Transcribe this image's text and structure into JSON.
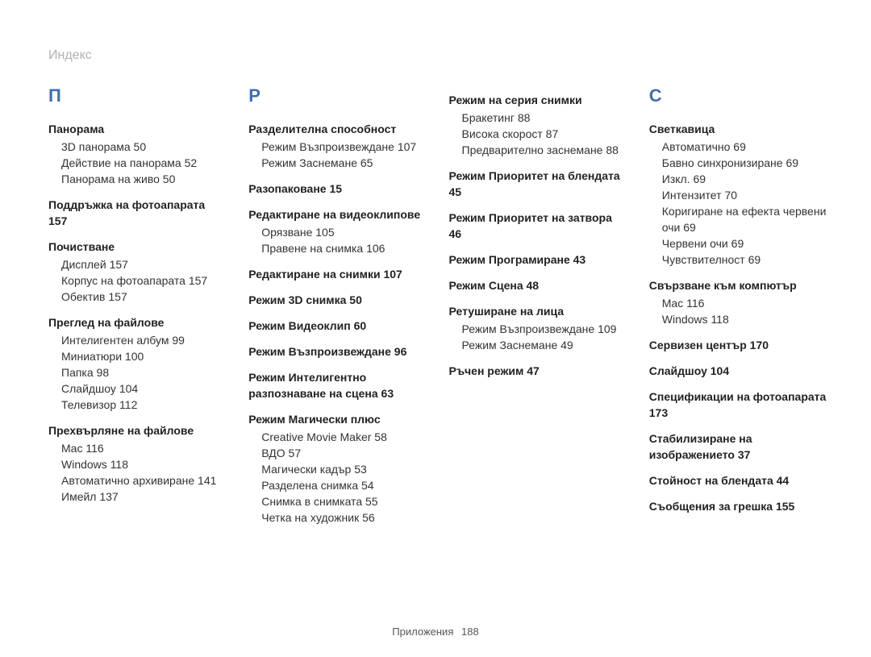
{
  "header": "Индекс",
  "footer_label": "Приложения",
  "footer_page": "188",
  "colors": {
    "heading": "#3f6fb0",
    "header_grey": "#b0b0b0",
    "text": "#333333",
    "background": "#ffffff"
  },
  "typography": {
    "heading_fontsize_pt": 16,
    "body_fontsize_pt": 10,
    "header_fontsize_pt": 12
  },
  "columns": [
    {
      "letter": "П",
      "entries": [
        {
          "title": "Панорама",
          "subs": [
            {
              "label": "3D панорама",
              "page": "50"
            },
            {
              "label": "Действие на панорама",
              "page": "52"
            },
            {
              "label": "Панорама на живо",
              "page": "50"
            }
          ]
        },
        {
          "title": "Поддръжка на фотоапарата",
          "page": "157"
        },
        {
          "title": "Почистване",
          "subs": [
            {
              "label": "Дисплей",
              "page": "157"
            },
            {
              "label": "Корпус на фотоапарата",
              "page": "157"
            },
            {
              "label": "Обектив",
              "page": "157"
            }
          ]
        },
        {
          "title": "Преглед на файлове",
          "subs": [
            {
              "label": "Интелигентен албум",
              "page": "99"
            },
            {
              "label": "Миниатюри",
              "page": "100"
            },
            {
              "label": "Папка",
              "page": "98"
            },
            {
              "label": "Слайдшоу",
              "page": "104"
            },
            {
              "label": "Телевизор",
              "page": "112"
            }
          ]
        },
        {
          "title": "Прехвърляне на файлове",
          "subs": [
            {
              "label": "Mac",
              "page": "116"
            },
            {
              "label": "Windows",
              "page": "118"
            },
            {
              "label": "Автоматично архивиране",
              "page": "141"
            },
            {
              "label": "Имейл",
              "page": "137"
            }
          ]
        }
      ]
    },
    {
      "letter": "Р",
      "entries": [
        {
          "title": "Разделителна способност",
          "subs": [
            {
              "label": "Режим Възпроизвеждане",
              "page": "107"
            },
            {
              "label": "Режим Заснемане",
              "page": "65"
            }
          ]
        },
        {
          "title": "Разопаковане",
          "page": "15"
        },
        {
          "title": "Редактиране на видеоклипове",
          "subs": [
            {
              "label": "Орязване",
              "page": "105"
            },
            {
              "label": "Правене на снимка",
              "page": "106"
            }
          ]
        },
        {
          "title": "Редактиране на снимки",
          "page": "107"
        },
        {
          "title": "Режим 3D снимка",
          "page": "50"
        },
        {
          "title": "Режим Видеоклип",
          "page": "60"
        },
        {
          "title": "Режим Възпроизвеждане",
          "page": "96"
        },
        {
          "title": "Режим Интелигентно разпознаване на сцена",
          "page": "63"
        },
        {
          "title": "Режим Магически плюс",
          "subs": [
            {
              "label": "Creative Movie Maker",
              "page": "58"
            },
            {
              "label": "ВДО",
              "page": "57"
            },
            {
              "label": "Магически кадър",
              "page": "53"
            },
            {
              "label": "Разделена снимка",
              "page": "54"
            },
            {
              "label": "Снимка в снимката",
              "page": "55"
            },
            {
              "label": "Четка на художник",
              "page": "56"
            }
          ]
        }
      ]
    },
    {
      "entries": [
        {
          "title": "Режим на серия снимки",
          "subs": [
            {
              "label": "Бракетинг",
              "page": "88"
            },
            {
              "label": "Висока скорост",
              "page": "87"
            },
            {
              "label": "Предварително заснемане",
              "page": "88"
            }
          ]
        },
        {
          "title": "Режим Приоритет на блендата",
          "page": "45"
        },
        {
          "title": "Режим Приоритет на затвора",
          "page": "46"
        },
        {
          "title": "Режим Програмиране",
          "page": "43"
        },
        {
          "title": "Режим Сцена",
          "page": "48"
        },
        {
          "title": "Ретуширане на лица",
          "subs": [
            {
              "label": "Режим Възпроизвеждане",
              "page": "109"
            },
            {
              "label": "Режим Заснемане",
              "page": "49"
            }
          ]
        },
        {
          "title": "Ръчен режим",
          "page": "47"
        }
      ]
    },
    {
      "letter": "С",
      "entries": [
        {
          "title": "Светкавица",
          "subs": [
            {
              "label": "Автоматично",
              "page": "69"
            },
            {
              "label": "Бавно синхронизиране",
              "page": "69"
            },
            {
              "label": "Изкл.",
              "page": "69"
            },
            {
              "label": "Интензитет",
              "page": "70"
            },
            {
              "label": "Коригиране на ефекта червени очи",
              "page": "69"
            },
            {
              "label": "Червени очи",
              "page": "69"
            },
            {
              "label": "Чувствителност",
              "page": "69"
            }
          ]
        },
        {
          "title": "Свързване към компютър",
          "subs": [
            {
              "label": "Mac",
              "page": "116"
            },
            {
              "label": "Windows",
              "page": "118"
            }
          ]
        },
        {
          "title": "Сервизен център",
          "page": "170"
        },
        {
          "title": "Слайдшоу",
          "page": "104"
        },
        {
          "title": "Спецификации на фотоапарата",
          "page": "173"
        },
        {
          "title": "Стабилизиране на изображението",
          "page": "37"
        },
        {
          "title": "Стойност на блендата",
          "page": "44"
        },
        {
          "title": "Съобщения за грешка",
          "page": "155"
        }
      ]
    }
  ]
}
